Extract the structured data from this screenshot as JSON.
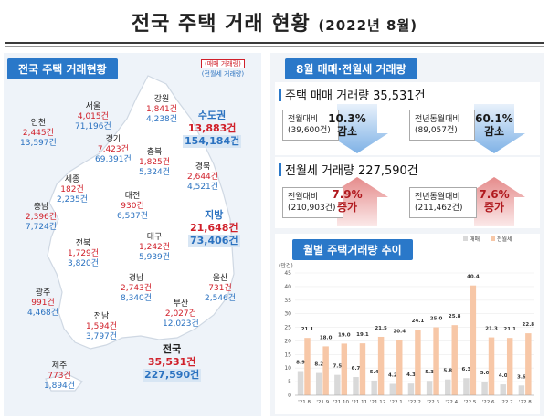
{
  "title": {
    "main": "전국 주택 거래 현황",
    "sub": "(2022년 8월)"
  },
  "left": {
    "header": "전국 주택 거래현황",
    "legend": {
      "sale": "(매매 거래량)",
      "jeonse": "(전월세 거래량)"
    },
    "regions": [
      {
        "id": "seoul",
        "name": "서울",
        "sale": "4,015건",
        "jeonse": "71,196건"
      },
      {
        "id": "incheon",
        "name": "인천",
        "sale": "2,445건",
        "jeonse": "13,597건"
      },
      {
        "id": "gangwon",
        "name": "강원",
        "sale": "1,841건",
        "jeonse": "4,238건"
      },
      {
        "id": "gyeonggi",
        "name": "경기",
        "sale": "7,423건",
        "jeonse": "69,391건"
      },
      {
        "id": "chungbuk",
        "name": "충북",
        "sale": "1,825건",
        "jeonse": "5,324건"
      },
      {
        "id": "gyeongbuk",
        "name": "경북",
        "sale": "2,644건",
        "jeonse": "4,521건"
      },
      {
        "id": "sejong",
        "name": "세종",
        "sale": "182건",
        "jeonse": "2,235건"
      },
      {
        "id": "daejeon",
        "name": "대전",
        "sale": "930건",
        "jeonse": "6,537건"
      },
      {
        "id": "chungnam",
        "name": "충남",
        "sale": "2,396건",
        "jeonse": "7,724건"
      },
      {
        "id": "daegu",
        "name": "대구",
        "sale": "1,242건",
        "jeonse": "5,939건"
      },
      {
        "id": "jeonbuk",
        "name": "전북",
        "sale": "1,729건",
        "jeonse": "3,820건"
      },
      {
        "id": "ulsan",
        "name": "울산",
        "sale": "731건",
        "jeonse": "2,546건"
      },
      {
        "id": "gyeongnam",
        "name": "경남",
        "sale": "2,743건",
        "jeonse": "8,340건"
      },
      {
        "id": "gwangju",
        "name": "광주",
        "sale": "991건",
        "jeonse": "4,468건"
      },
      {
        "id": "busan",
        "name": "부산",
        "sale": "2,027건",
        "jeonse": "12,023건"
      },
      {
        "id": "jeonnam",
        "name": "전남",
        "sale": "1,594건",
        "jeonse": "3,797건"
      },
      {
        "id": "jeju",
        "name": "제주",
        "sale": "773건",
        "jeonse": "1,894건"
      }
    ],
    "capital": {
      "name": "수도권",
      "sale": "13,883건",
      "jeonse": "154,184건"
    },
    "local": {
      "name": "지방",
      "sale": "21,648건",
      "jeonse": "73,406건"
    },
    "national": {
      "name": "전국",
      "sale": "35,531건",
      "jeonse": "227,590건"
    }
  },
  "right": {
    "header": "8월 매매·전월세 거래량",
    "sale": {
      "title": "주택 매매 거래량 35,531건",
      "mom": {
        "label": "전월대비",
        "ref": "(39,600건)",
        "pct": "10.3%",
        "dir": "감소"
      },
      "yoy": {
        "label": "전년동월대비",
        "ref": "(89,057건)",
        "pct": "60.1%",
        "dir": "감소"
      }
    },
    "jeonse": {
      "title": "전월세 거래량 227,590건",
      "mom": {
        "label": "전월대비",
        "ref": "(210,903건)",
        "pct": "7.9%",
        "dir": "증가"
      },
      "yoy": {
        "label": "전년동월대비",
        "ref": "(211,462건)",
        "pct": "7.6%",
        "dir": "증가"
      }
    },
    "chart_header": "월별 주택거래량 추이"
  },
  "colors": {
    "sale": "#d9d9d9",
    "jeonse": "#f7c7a7",
    "accent": "#2a78c9",
    "down": "#1a1a1a",
    "up": "#b0191e"
  },
  "chart_data": {
    "type": "bar",
    "unit_label": "(만건)",
    "categories": [
      "'21.8",
      "'21.9",
      "'21.10",
      "'21.11",
      "'21.12",
      "'22.1",
      "'22.2",
      "'22.3",
      "'22.4",
      "'22.5",
      "'22.6",
      "'22.7",
      "'22.8"
    ],
    "series": [
      {
        "name": "매매",
        "values": [
          8.9,
          8.2,
          7.5,
          6.7,
          5.4,
          4.2,
          4.3,
          5.3,
          5.8,
          6.3,
          5.0,
          4.0,
          3.6
        ]
      },
      {
        "name": "전월세",
        "values": [
          21.1,
          18.0,
          19.0,
          19.1,
          21.5,
          20.4,
          24.1,
          25.0,
          25.8,
          40.4,
          21.3,
          21.1,
          22.8
        ]
      }
    ],
    "yticks": [
      0,
      5,
      10,
      15,
      20,
      25,
      30,
      35,
      40,
      45
    ],
    "ylim": [
      0,
      45
    ],
    "legend_position": "top-right"
  }
}
